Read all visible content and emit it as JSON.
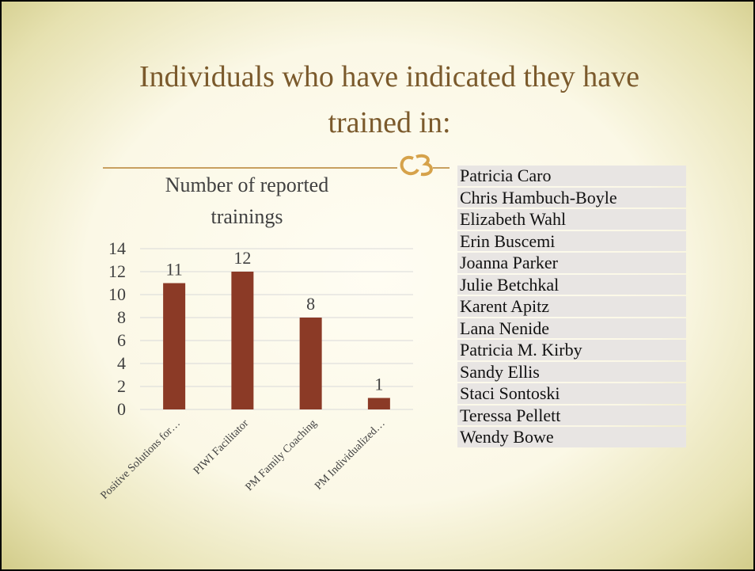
{
  "title": "Individuals who have indicated they have trained in:",
  "chart_data": {
    "type": "bar",
    "title": "Number of reported trainings",
    "categories": [
      "Positive Solutions for…",
      "PIWI Facilitator",
      "PM Family Coaching",
      "PM Individualized…"
    ],
    "values": [
      11,
      12,
      8,
      1
    ],
    "color": "#8b3a26",
    "ylim": [
      0,
      14
    ],
    "yticks": [
      0,
      2,
      4,
      6,
      8,
      10,
      12,
      14
    ],
    "grid": true
  },
  "names": [
    "Patricia Caro",
    "Chris Hambuch-Boyle",
    "Elizabeth Wahl",
    "Erin Buscemi",
    "Joanna Parker",
    "Julie Betchkal",
    "Karent Apitz",
    "Lana Nenide",
    "Patricia M. Kirby",
    "Sandy Ellis",
    "Staci Sontoski",
    "Teressa Pellett",
    "Wendy Bowe"
  ]
}
